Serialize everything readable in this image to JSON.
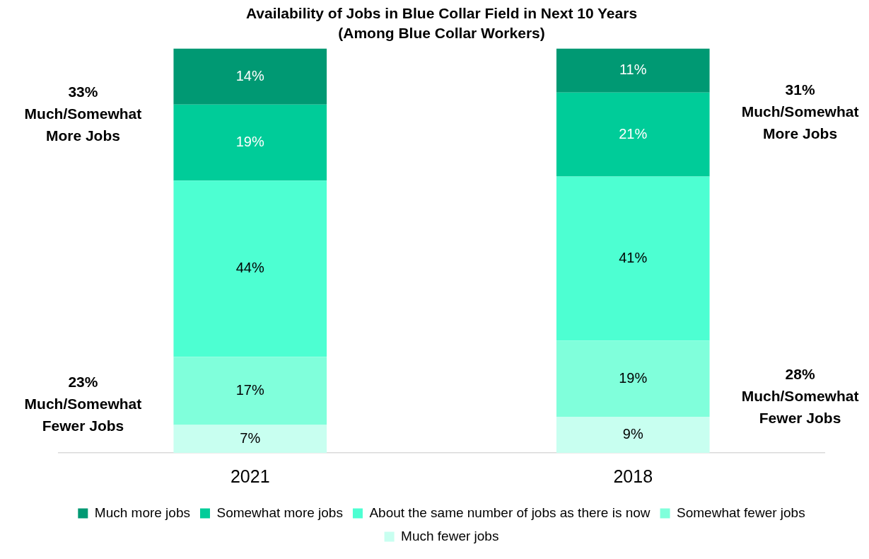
{
  "chart_data": {
    "type": "bar",
    "title": "Availability of Jobs in Blue Collar Field in Next 10 Years",
    "subtitle": "(Among Blue Collar Workers)",
    "categories": [
      "2021",
      "2018"
    ],
    "stacked": true,
    "legend": "bottom",
    "grid": false,
    "tick_labels": "x",
    "series": [
      {
        "name": "Much fewer jobs",
        "color": "#c8fff0",
        "values": [
          7,
          9
        ],
        "value_labels": [
          "7%",
          "9%"
        ]
      },
      {
        "name": "Somewhat fewer jobs",
        "color": "#80ffdb",
        "values": [
          17,
          19
        ],
        "value_labels": [
          "17%",
          "19%"
        ]
      },
      {
        "name": "About the same number of jobs as there is now",
        "color": "#4dffd2",
        "values": [
          44,
          41
        ],
        "value_labels": [
          "44%",
          "41%"
        ]
      },
      {
        "name": "Somewhat more jobs",
        "color": "#00cc99",
        "values": [
          19,
          21
        ],
        "value_labels": [
          "19%",
          "21%"
        ]
      },
      {
        "name": "Much more jobs",
        "color": "#009973",
        "values": [
          14,
          11
        ],
        "value_labels": [
          "14%",
          "11%"
        ]
      }
    ],
    "annotations": [
      "33% Much/Somewhat More Jobs",
      "23% Much/Somewhat Fewer Jobs",
      "31% Much/Somewhat More Jobs",
      "28% Much/Somewhat Fewer Jobs"
    ]
  }
}
